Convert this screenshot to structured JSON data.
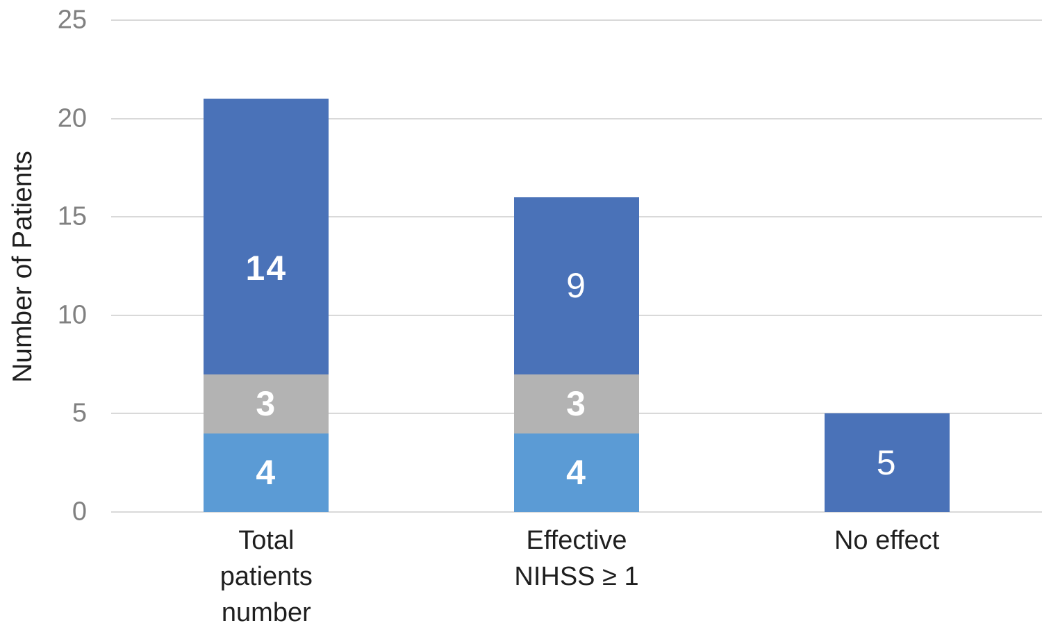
{
  "chart_data": {
    "type": "bar",
    "stacked": true,
    "title": "",
    "ylabel": "Number of Patients",
    "xlabel": "",
    "ylim": [
      0,
      25
    ],
    "yticks": [
      0,
      5,
      10,
      15,
      20,
      25
    ],
    "grid": true,
    "legend": false,
    "categories": [
      "Total patients number",
      "Effective NIHSS ≥ 1",
      "No effect"
    ],
    "categories_lines": [
      [
        "Total",
        "patients",
        "number"
      ],
      [
        "Effective",
        "NIHSS ≥ 1"
      ],
      [
        "No effect"
      ]
    ],
    "series": [
      {
        "name": "light-blue-segment",
        "color": "#5B9BD5",
        "values": [
          4,
          4,
          0
        ],
        "labels_bold": [
          true,
          true,
          false
        ],
        "label_dy": [
          0,
          0,
          0
        ]
      },
      {
        "name": "gray-segment",
        "color": "#B3B3B3",
        "values": [
          3,
          3,
          0
        ],
        "labels_bold": [
          true,
          true,
          false
        ],
        "label_dy": [
          0,
          0,
          0
        ]
      },
      {
        "name": "dark-blue-segment",
        "color": "#4A72B8",
        "values": [
          14,
          9,
          5
        ],
        "labels_bold": [
          true,
          false,
          false
        ],
        "label_dy": [
          45,
          0,
          0
        ]
      }
    ],
    "totals": [
      21,
      16,
      5
    ],
    "data_label_color": "#FFFFFF"
  },
  "colors": {
    "background": "#FFFFFF",
    "gridline": "#D9D9D9",
    "tick_label": "#808080",
    "axis_label": "#1F1F1F"
  }
}
